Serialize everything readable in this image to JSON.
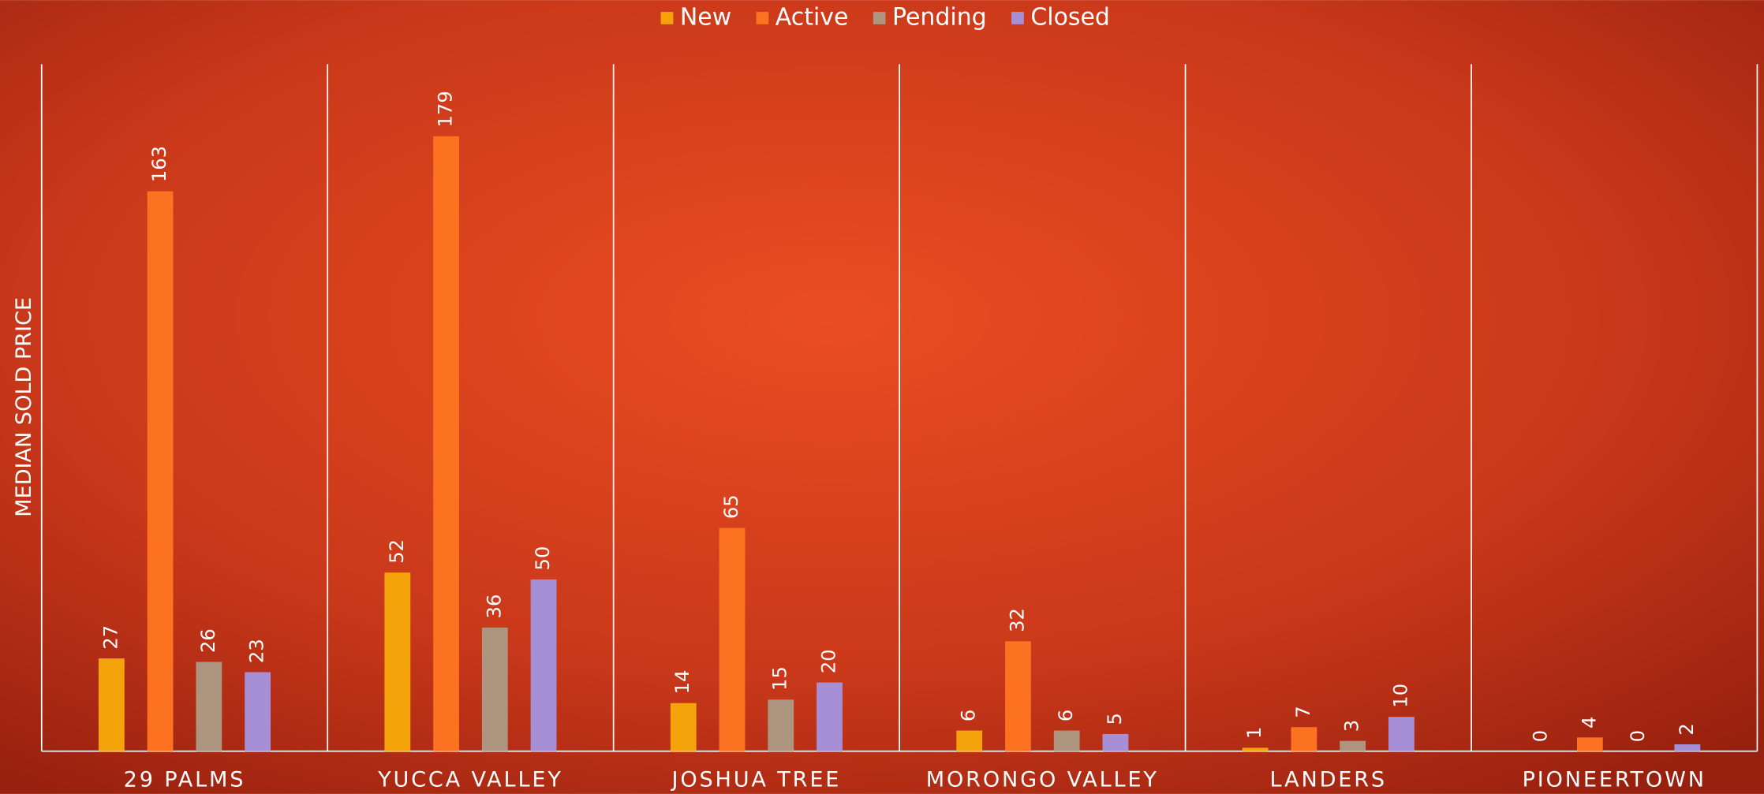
{
  "chart_data": {
    "type": "bar",
    "y_label": "MEDIAN SOLD PRICE",
    "categories": [
      "29 PALMS",
      "YUCCA VALLEY",
      "JOSHUA TREE",
      "MORONGO VALLEY",
      "LANDERS",
      "PIONEERTOWN"
    ],
    "series": [
      {
        "name": "New",
        "color": "#f5a30a",
        "values": [
          27,
          52,
          14,
          6,
          1,
          0
        ]
      },
      {
        "name": "Active",
        "color": "#fc7220",
        "values": [
          163,
          179,
          65,
          32,
          7,
          4
        ]
      },
      {
        "name": "Pending",
        "color": "#ad9580",
        "values": [
          26,
          36,
          15,
          6,
          3,
          0
        ]
      },
      {
        "name": "Closed",
        "color": "#a78fd6",
        "values": [
          23,
          50,
          20,
          5,
          10,
          2
        ]
      }
    ],
    "ylim": [
      0,
      200
    ],
    "legend": "top"
  }
}
